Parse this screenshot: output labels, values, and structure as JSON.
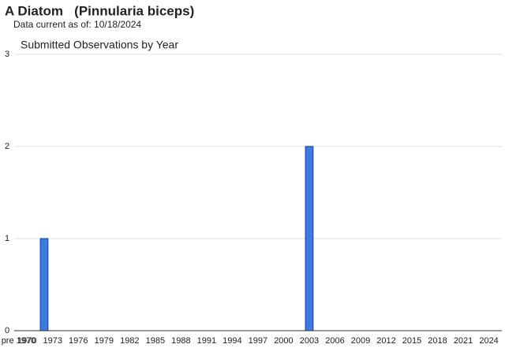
{
  "chart_data": {
    "type": "bar",
    "title": "A Diatom   (Pinnularia biceps)",
    "note": "Data current as of: 10/18/2024",
    "subtitle": "Submitted Observations by Year",
    "categories": [
      "pre 1970",
      "1970",
      null,
      null,
      "1973",
      null,
      null,
      "1976",
      null,
      null,
      "1979",
      null,
      null,
      "1982",
      null,
      null,
      "1985",
      null,
      null,
      "1988",
      null,
      null,
      "1991",
      null,
      null,
      "1994",
      null,
      null,
      "1997",
      null,
      null,
      "2000",
      null,
      null,
      "2003",
      null,
      null,
      "2006",
      null,
      null,
      "2009",
      null,
      null,
      "2012",
      null,
      null,
      "2015",
      null,
      null,
      "2018",
      null,
      null,
      "2021",
      null,
      null,
      "2024"
    ],
    "values": [
      0,
      0,
      0,
      1,
      0,
      0,
      0,
      0,
      0,
      0,
      0,
      0,
      0,
      0,
      0,
      0,
      0,
      0,
      0,
      0,
      0,
      0,
      0,
      0,
      0,
      0,
      0,
      0,
      0,
      0,
      0,
      0,
      0,
      0,
      2,
      0,
      0,
      0,
      0,
      0,
      0,
      0,
      0,
      0,
      0,
      0,
      0,
      0,
      0,
      0,
      0,
      0,
      0,
      0,
      0,
      0
    ],
    "color": "#3b7be3",
    "ylim": [
      0,
      3
    ],
    "yticks": [
      0,
      1,
      2,
      3
    ],
    "grid": true
  }
}
